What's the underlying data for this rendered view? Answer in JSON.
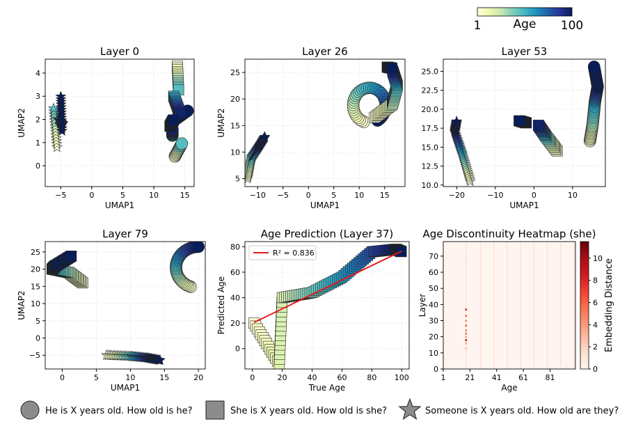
{
  "colorbar_top": {
    "label": "Age",
    "min_label": "1",
    "max_label": "100"
  },
  "legend_bottom": [
    {
      "marker": "circle",
      "label": "He is X years old. How old is he?"
    },
    {
      "marker": "square",
      "label": "She is X years old. How old is she?"
    },
    {
      "marker": "star",
      "label": "Someone is X years old. How old are they?"
    }
  ],
  "colors": {
    "ylgnbu_low": "#ffffd9",
    "ylgnbu_high": "#081d58",
    "fit_line": "#e31a1c",
    "marker_edge": "#222222"
  },
  "chart_data": [
    {
      "type": "scatter",
      "title": "Layer 0",
      "xlabel": "UMAP1",
      "ylabel": "UMAP2",
      "xlim": [
        -7.5,
        16.5
      ],
      "ylim": [
        -0.9,
        4.6
      ],
      "xticks": [
        -5,
        0,
        5,
        10,
        15
      ],
      "yticks": [
        0,
        1,
        2,
        3,
        4
      ],
      "xtick_labels": [
        "−5",
        "0",
        "5",
        "10",
        "15"
      ],
      "ytick_labels": [
        "0",
        "1",
        "2",
        "3",
        "4"
      ],
      "series": [
        {
          "name": "he",
          "marker": "circle",
          "ages": [
            1,
            50,
            100
          ],
          "x0": [
            13.4,
            13.0,
            13.5
          ],
          "y0": [
            0.4,
            1.3,
            2.0
          ],
          "x1": [
            14.6,
            13.0,
            15.6
          ],
          "y1": [
            1.0,
            1.6,
            2.4
          ]
        },
        {
          "name": "she",
          "marker": "square",
          "ages": [
            1,
            50,
            100
          ],
          "x0": [
            13.8,
            13.2,
            12.6
          ],
          "y0": [
            4.3,
            3.0,
            1.7
          ],
          "x1": [
            14.0,
            14.3,
            13.2
          ],
          "y1": [
            3.2,
            2.2,
            2.0
          ]
        },
        {
          "name": "someone",
          "marker": "star",
          "ages": [
            1,
            50,
            100
          ],
          "x0": [
            -5.6,
            -5.4,
            -4.8
          ],
          "y0": [
            0.8,
            2.0,
            1.5
          ],
          "x1": [
            -6.2,
            -4.6,
            -5.0
          ],
          "y1": [
            2.6,
            1.8,
            3.1
          ]
        }
      ]
    },
    {
      "type": "scatter",
      "title": "Layer 26",
      "xlabel": "UMAP1",
      "ylabel": "UMAP2",
      "xlim": [
        -12.5,
        19.0
      ],
      "ylim": [
        3.5,
        27.5
      ],
      "xticks": [
        -10,
        -5,
        0,
        5,
        10,
        15
      ],
      "yticks": [
        5,
        10,
        15,
        20,
        25
      ],
      "xtick_labels": [
        "−10",
        "−5",
        "0",
        "5",
        "10",
        "15"
      ],
      "ytick_labels": [
        "5",
        "10",
        "15",
        "20",
        "25"
      ],
      "series": [
        {
          "name": "he",
          "marker": "arc",
          "ages": [
            1,
            100
          ],
          "cx": 12.0,
          "cy": 18.8,
          "rx": 3.2,
          "ry": 3.3,
          "a0": 250,
          "a1": -60,
          "x_start": 12.5,
          "y_start": 16.2,
          "x_end": 13.8,
          "y_end": 18.6
        },
        {
          "name": "she",
          "marker": "square",
          "ages": [
            1,
            25,
            50,
            100
          ],
          "x0": [
            13.0,
            16.5,
            17.5,
            15.5
          ],
          "y0": [
            16.5,
            19.0,
            22.5,
            26.0
          ],
          "x1": [
            16.5,
            17.5,
            16.5,
            16.5
          ],
          "y1": [
            19.0,
            22.5,
            25.5,
            25.8
          ]
        },
        {
          "name": "someone",
          "marker": "star",
          "ages": [
            1,
            50,
            100
          ],
          "x0": [
            -12.0,
            -11.2,
            -9.8
          ],
          "y0": [
            5.0,
            9.0,
            11.0
          ],
          "x1": [
            -11.2,
            -9.8,
            -8.5
          ],
          "y1": [
            9.0,
            11.0,
            13.0
          ]
        }
      ]
    },
    {
      "type": "scatter",
      "title": "Layer 53",
      "xlabel": "UMAP1",
      "ylabel": "",
      "xlim": [
        -23.5,
        18.5
      ],
      "ylim": [
        9.8,
        26.6
      ],
      "xticks": [
        -20,
        -10,
        0,
        10
      ],
      "yticks": [
        10.0,
        12.5,
        15.0,
        17.5,
        20.0,
        22.5,
        25.0
      ],
      "xtick_labels": [
        "−20",
        "−10",
        "0",
        "10"
      ],
      "ytick_labels": [
        "10.0",
        "12.5",
        "15.0",
        "17.5",
        "20.0",
        "22.5",
        "25.0"
      ],
      "series": [
        {
          "name": "he",
          "marker": "circle",
          "ages": [
            1,
            30,
            60,
            100
          ],
          "x0": [
            14.5,
            15.2,
            15.8,
            16.5
          ],
          "y0": [
            15.8,
            18.0,
            21.0,
            23.0
          ],
          "x1": [
            15.2,
            15.8,
            16.5,
            15.5
          ],
          "y1": [
            18.0,
            21.0,
            23.0,
            25.8
          ]
        },
        {
          "name": "she",
          "marker": "square",
          "ages": [
            1,
            50,
            100
          ],
          "x0": [
            6.0,
            3.0,
            -2.0
          ],
          "y0": [
            14.5,
            16.5,
            18.2
          ],
          "x1": [
            3.0,
            1.0,
            -4.0
          ],
          "y1": [
            16.5,
            18.0,
            18.5
          ]
        },
        {
          "name": "someone",
          "marker": "star",
          "ages": [
            1,
            50,
            100
          ],
          "x0": [
            -16.5,
            -18.5,
            -20.5
          ],
          "y0": [
            10.5,
            14.0,
            17.0
          ],
          "x1": [
            -18.5,
            -20.5,
            -20.0
          ],
          "y1": [
            14.0,
            17.0,
            18.5
          ]
        }
      ]
    },
    {
      "type": "scatter",
      "title": "Layer 79",
      "xlabel": "UMAP1",
      "ylabel": "UMAP2",
      "xlim": [
        -2.5,
        21.0
      ],
      "ylim": [
        -9.0,
        28.0
      ],
      "xticks": [
        0,
        5,
        10,
        15,
        20
      ],
      "yticks": [
        -5,
        0,
        5,
        10,
        15,
        20,
        25
      ],
      "xtick_labels": [
        "0",
        "5",
        "10",
        "15",
        "20"
      ],
      "ytick_labels": [
        "−5",
        "0",
        "5",
        "10",
        "15",
        "20",
        "25"
      ],
      "series": [
        {
          "name": "he",
          "marker": "arc",
          "ages": [
            1,
            100
          ],
          "cx": 20.0,
          "cy": 20.5,
          "rx": 3.3,
          "ry": 6.0,
          "a0": 250,
          "a1": 90,
          "x_start": 16.5,
          "y_start": 16.5,
          "x_end": 20.0,
          "y_end": 26.5
        },
        {
          "name": "she",
          "marker": "square",
          "ages": [
            1,
            30,
            60,
            100
          ],
          "x0": [
            3.0,
            1.0,
            -1.5,
            -1.0
          ],
          "y0": [
            16.0,
            19.0,
            20.0,
            21.0
          ],
          "x1": [
            1.0,
            -1.5,
            -1.0,
            1.5
          ],
          "y1": [
            19.0,
            20.0,
            21.0,
            24.0
          ]
        },
        {
          "name": "someone",
          "marker": "star",
          "ages": [
            1,
            50,
            100
          ],
          "x0": [
            6.5,
            10.0,
            12.5
          ],
          "y0": [
            -5.0,
            -5.3,
            -5.8
          ],
          "x1": [
            10.0,
            12.5,
            14.5
          ],
          "y1": [
            -5.3,
            -5.8,
            -6.5
          ]
        }
      ]
    },
    {
      "type": "scatter",
      "title": "Age Prediction (Layer 37)",
      "xlabel": "True Age",
      "ylabel": "Predicted Age",
      "xlim": [
        -5,
        105
      ],
      "ylim": [
        -16,
        84
      ],
      "xticks": [
        0,
        20,
        40,
        60,
        80,
        100
      ],
      "yticks": [
        0,
        20,
        40,
        60,
        80
      ],
      "xtick_labels": [
        "0",
        "20",
        "40",
        "60",
        "80",
        "100"
      ],
      "ytick_labels": [
        "0",
        "20",
        "40",
        "60",
        "80"
      ],
      "legend": "R² = 0.836",
      "fit_line": {
        "x": [
          1,
          100
        ],
        "y": [
          20.5,
          76.5
        ]
      },
      "series": [
        {
          "name": "she",
          "marker": "square",
          "ages": [
            1,
            18,
            20,
            40,
            60,
            80,
            100
          ],
          "x0": [
            1,
            18,
            20,
            40,
            60,
            80,
            96
          ],
          "y0": [
            20,
            -12,
            40,
            44,
            56,
            76,
            78
          ],
          "x1": [
            18,
            20,
            40,
            60,
            80,
            96,
            100
          ],
          "y1": [
            -12,
            40,
            44,
            56,
            76,
            78,
            76
          ]
        }
      ]
    },
    {
      "type": "heatmap",
      "title": "Age Discontinuity Heatmap (she)",
      "xlabel": "Age",
      "ylabel": "Layer",
      "xlim": [
        1,
        100
      ],
      "ylim": [
        0,
        79
      ],
      "xticks": [
        1,
        21,
        41,
        61,
        81
      ],
      "yticks": [
        0,
        10,
        20,
        30,
        40,
        50,
        60,
        70
      ],
      "xtick_labels": [
        "1",
        "21",
        "41",
        "61",
        "81"
      ],
      "ytick_labels": [
        "0",
        "10",
        "20",
        "30",
        "40",
        "50",
        "60",
        "70"
      ],
      "colorbar": {
        "label": "Embedding Distance",
        "min": 0,
        "max": 11.5,
        "ticks": [
          0,
          2,
          4,
          6,
          8,
          10
        ],
        "tick_labels": [
          "0",
          "2",
          "4",
          "6",
          "8",
          "10"
        ]
      },
      "faint_columns": [
        18,
        29,
        39,
        49,
        59,
        69,
        79,
        89,
        99
      ],
      "hot_cells": [
        {
          "age": 18,
          "layer": 37,
          "value": 9.5
        },
        {
          "age": 18,
          "layer": 33,
          "value": 6.5
        },
        {
          "age": 18,
          "layer": 30,
          "value": 5.0
        },
        {
          "age": 18,
          "layer": 27,
          "value": 7.0
        },
        {
          "age": 18,
          "layer": 24,
          "value": 5.5
        },
        {
          "age": 18,
          "layer": 22,
          "value": 6.0
        },
        {
          "age": 18,
          "layer": 20,
          "value": 5.0
        },
        {
          "age": 18,
          "layer": 18,
          "value": 10.5
        },
        {
          "age": 18,
          "layer": 16,
          "value": 4.0
        },
        {
          "age": 18,
          "layer": 13,
          "value": 3.0
        },
        {
          "age": 18,
          "layer": 68,
          "value": 1.8
        },
        {
          "age": 93,
          "layer": 1,
          "value": 1.5
        }
      ]
    }
  ]
}
